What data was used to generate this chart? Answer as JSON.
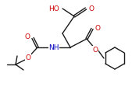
{
  "bg_color": "#ffffff",
  "lc": "#1a1a1a",
  "oc": "#cc0000",
  "nc": "#0000bb",
  "lw": 1.0,
  "figsize": [
    1.69,
    1.13
  ],
  "dpi": 100,
  "xlim": [
    0,
    169
  ],
  "ylim": [
    0,
    113
  ]
}
